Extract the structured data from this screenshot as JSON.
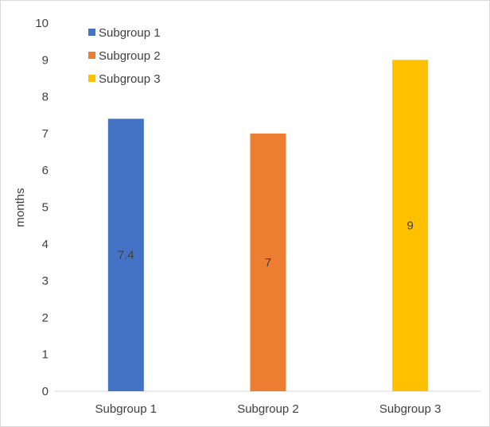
{
  "chart_data": {
    "type": "bar",
    "categories": [
      "Subgroup 1",
      "Subgroup 2",
      "Subgroup 3"
    ],
    "values": [
      7.4,
      7,
      9
    ],
    "data_labels": [
      "7.4",
      "7",
      "9"
    ],
    "ylabel": "months",
    "ylim": [
      0,
      10
    ],
    "yticks": [
      "0",
      "1",
      "2",
      "3",
      "4",
      "5",
      "6",
      "7",
      "8",
      "9",
      "10"
    ],
    "grid": false,
    "legend": {
      "placement": "top-left",
      "entries": [
        "Subgroup 1",
        "Subgroup 2",
        "Subgroup 3"
      ]
    },
    "colors": [
      "#4472c4",
      "#ed7d31",
      "#ffc000"
    ]
  }
}
